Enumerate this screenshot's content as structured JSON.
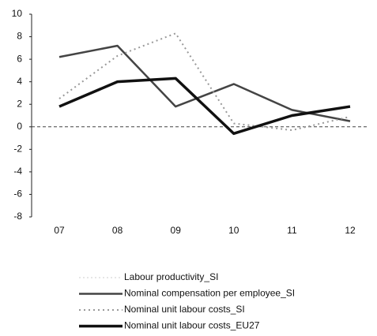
{
  "chart_data": {
    "type": "line",
    "categories": [
      "07",
      "08",
      "09",
      "10",
      "11",
      "12"
    ],
    "series": [
      {
        "name": "Labour productivity_SI",
        "color": "#cccccc",
        "values": [
          null,
          null,
          null,
          null,
          null,
          null
        ]
      },
      {
        "name": "Nominal compensation per employee_SI",
        "color": "#444444",
        "values": [
          6.2,
          7.2,
          1.8,
          3.8,
          1.5,
          0.5
        ]
      },
      {
        "name": "Nominal unit labour costs_SI",
        "color": "#999999",
        "values": [
          2.5,
          6.3,
          8.3,
          0.3,
          -0.3,
          0.9
        ]
      },
      {
        "name": "Nominal unit labour costs_EU27",
        "color": "#111111",
        "values": [
          1.8,
          4.0,
          4.3,
          -0.6,
          1.0,
          1.8
        ]
      }
    ],
    "ylim": [
      -8,
      10
    ],
    "yticks": [
      -8,
      -6,
      -4,
      -2,
      0,
      2,
      4,
      6,
      8,
      10
    ],
    "grid": false
  }
}
